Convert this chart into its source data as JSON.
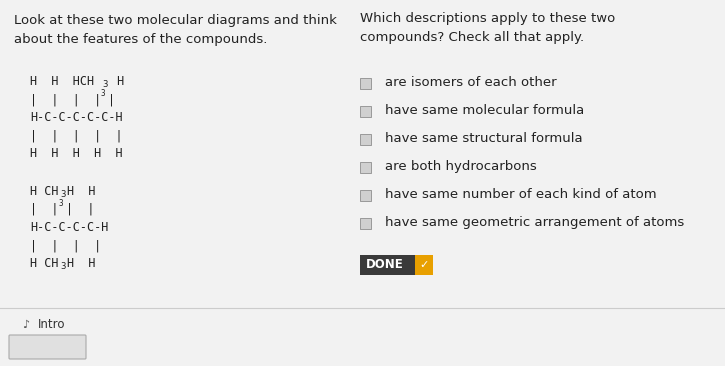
{
  "bg_color": "#f2f2f2",
  "left_title": "Look at these two molecular diagrams and think\nabout the features of the compounds.",
  "right_title": "Which descriptions apply to these two\ncompounds? Check all that apply.",
  "checkboxes": [
    "are isomers of each other",
    "have same molecular formula",
    "have same structural formula",
    "are both hydrocarbons",
    "have same number of each kind of atom",
    "have same geometric arrangement of atoms"
  ],
  "done_label": "DONE",
  "done_bg": "#3a3a3a",
  "done_arrow_bg": "#e8a000",
  "done_text_color": "#ffffff",
  "mol1_line1": "H  H  HCH3H",
  "mol1_line2": "|  |  |  |3 |",
  "mol1_line3": "H-C-C-C-C-C-H",
  "mol1_line4": "|  |  |  |  |",
  "mol1_line5": "H  H  H  H  H",
  "mol2_line1": "H CH3H  H",
  "mol2_line2": "|  |3 |  |",
  "mol2_line3": "H-C-C-C-C-H",
  "mol2_line4": "|  |  |  |",
  "mol2_line5": "H CH3H  H",
  "text_color": "#222222",
  "checkbox_color": "#d0d0d0",
  "checkbox_edge": "#999999",
  "separator_color": "#cccccc",
  "label_fontsize": 9.5,
  "mono_fontsize": 8.5
}
